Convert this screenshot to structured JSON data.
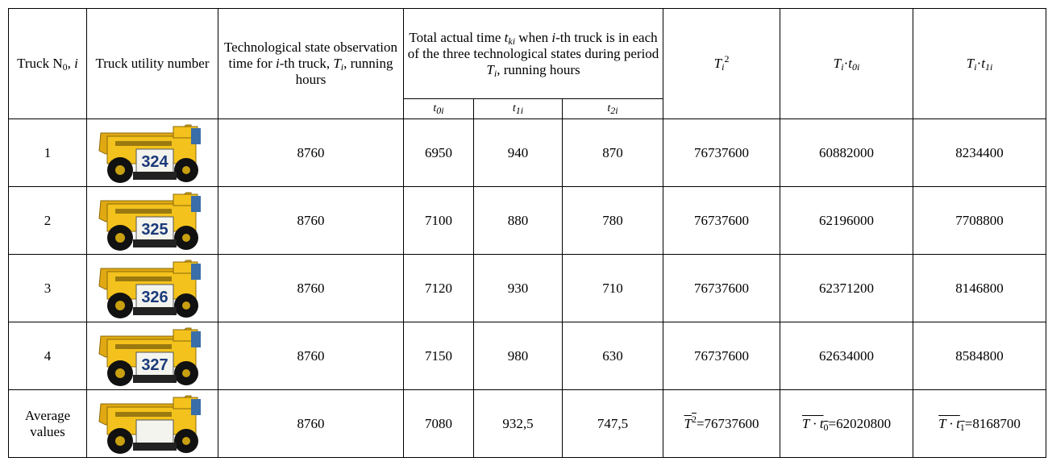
{
  "header": {
    "truck_no": [
      "Truck N",
      "0",
      ", ",
      "i"
    ],
    "utility": "Truck utility number",
    "observation": [
      "Technological state observation time for ",
      "i",
      "-th truck, ",
      "T",
      "i",
      ", running hours"
    ],
    "total": [
      "Total actual time ",
      "t",
      "ki",
      " when ",
      "i",
      "-th truck is in each of the three technological states during period ",
      "T",
      "i",
      ", running hours"
    ],
    "t0": [
      "t",
      "0i"
    ],
    "t1": [
      "t",
      "1i"
    ],
    "t2": [
      "t",
      "2i"
    ],
    "t_sq": [
      "T",
      "i",
      "2"
    ],
    "t_t0": [
      "T",
      "i",
      "·",
      "t",
      "0i"
    ],
    "t_t1": [
      "T",
      "i",
      "·",
      "t",
      "1i"
    ]
  },
  "table": {
    "rows": [
      [
        "1",
        "8760",
        "6950",
        "940",
        "870",
        "76737600",
        "60882000",
        "8234400"
      ],
      [
        "2",
        "8760",
        "7100",
        "880",
        "780",
        "76737600",
        "62196000",
        "7708800"
      ],
      [
        "3",
        "8760",
        "7120",
        "930",
        "710",
        "76737600",
        "62371200",
        "8146800"
      ],
      [
        "4",
        "8760",
        "7150",
        "980",
        "630",
        "76737600",
        "62634000",
        "8584800"
      ]
    ],
    "truck_numbers": [
      "324",
      "325",
      "326",
      "327"
    ],
    "average": {
      "label": "Average values",
      "values": [
        "8760",
        "7080",
        "932,5",
        "747,5"
      ],
      "t_sq": [
        "T",
        "2",
        "=76737600"
      ],
      "t_t0": [
        "T · t",
        "0",
        "=62020800"
      ],
      "t_t1": [
        "T · t",
        "1",
        "=8168700"
      ]
    }
  }
}
